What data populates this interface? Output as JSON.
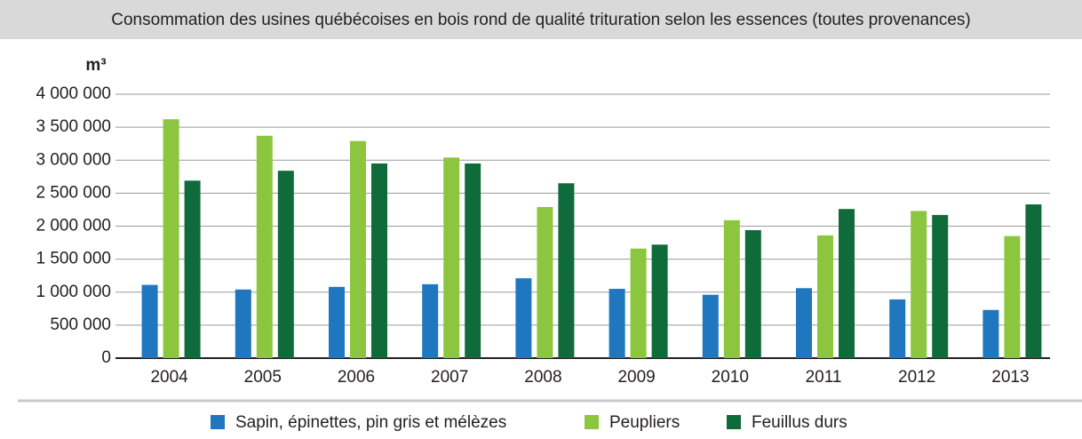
{
  "chart_data": {
    "type": "bar",
    "title": "Consommation des usines québécoises en bois rond de qualité trituration selon les essences (toutes provenances)",
    "y_label": "m³",
    "categories": [
      "2004",
      "2005",
      "2006",
      "2007",
      "2008",
      "2009",
      "2010",
      "2011",
      "2012",
      "2013"
    ],
    "series": [
      {
        "name": "Sapin, épinettes, pin gris et mélèzes",
        "color": "#1f77c0",
        "values": [
          1110000,
          1040000,
          1080000,
          1120000,
          1210000,
          1050000,
          960000,
          1060000,
          890000,
          730000
        ]
      },
      {
        "name": "Peupliers",
        "color": "#8cc63f",
        "values": [
          3620000,
          3370000,
          3290000,
          3040000,
          2290000,
          1660000,
          2090000,
          1860000,
          2230000,
          1850000
        ]
      },
      {
        "name": "Feuillus durs",
        "color": "#0f6b3a",
        "values": [
          2690000,
          2840000,
          2950000,
          2950000,
          2650000,
          1720000,
          1940000,
          2260000,
          2170000,
          2330000
        ]
      }
    ],
    "ylim": [
      0,
      4000000
    ],
    "yticks": [
      0,
      {
        "value": 500000,
        "label": "500 000"
      },
      {
        "value": 1000000,
        "label": "1 000 000"
      },
      {
        "value": 1500000,
        "label": "1 500 000"
      },
      {
        "value": 2000000,
        "label": "2 000 000"
      },
      {
        "value": 2500000,
        "label": "2 500 000"
      },
      {
        "value": 3000000,
        "label": "3 000 000"
      },
      {
        "value": 3500000,
        "label": "3 500 000"
      },
      {
        "value": 4000000,
        "label": "4 000 000"
      }
    ],
    "grid": true,
    "legend": "bottom"
  }
}
